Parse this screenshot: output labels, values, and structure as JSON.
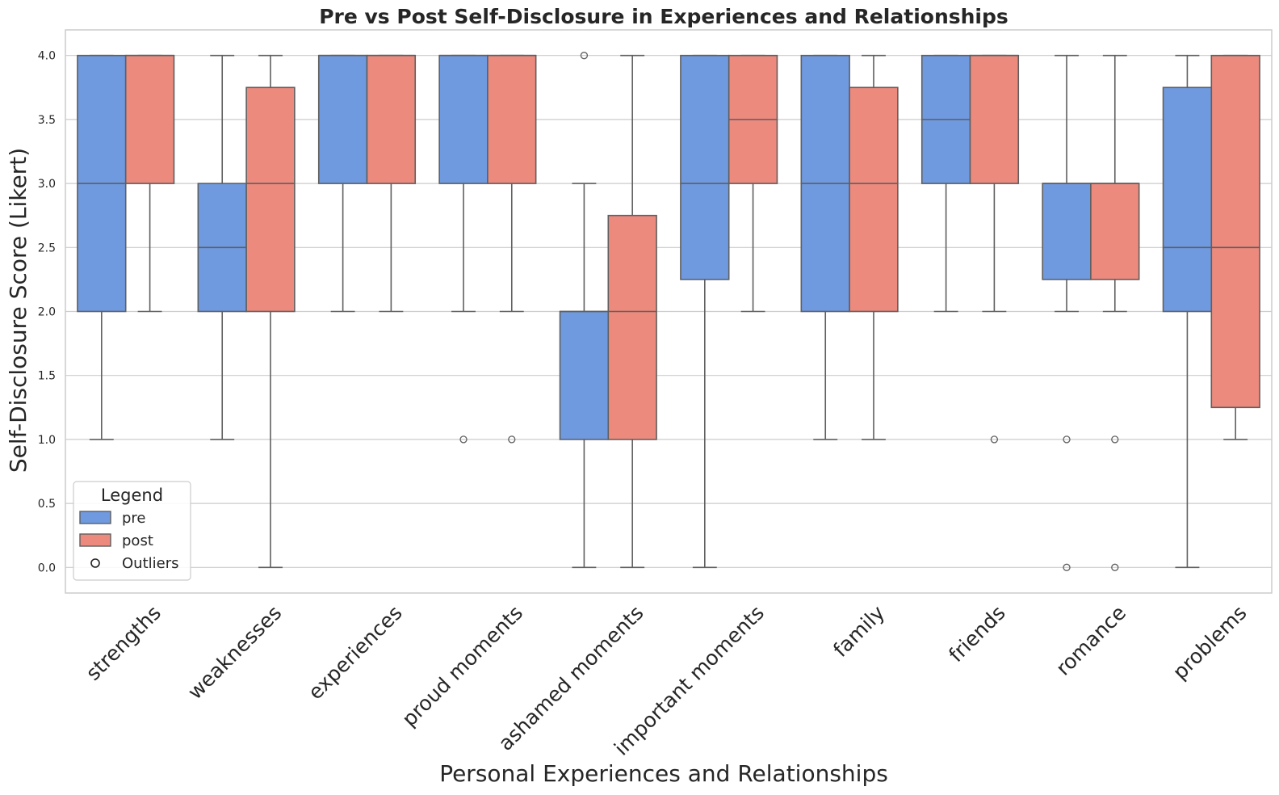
{
  "chart_data": {
    "type": "box",
    "title": "Pre vs Post Self-Disclosure in Experiences and Relationships",
    "xlabel": "Personal Experiences and Relationships",
    "ylabel": "Self-Disclosure Score (Likert)",
    "ylim": [
      -0.2,
      4.2
    ],
    "yticks": [
      0.0,
      0.5,
      1.0,
      1.5,
      2.0,
      2.5,
      3.0,
      3.5,
      4.0
    ],
    "ytick_labels": [
      "0.0",
      "0.5",
      "1.0",
      "1.5",
      "2.0",
      "2.5",
      "3.0",
      "3.5",
      "4.0"
    ],
    "grid": true,
    "legend": {
      "title": "Legend",
      "placement": "lower-left",
      "entries": [
        {
          "label": "pre",
          "kind": "patch",
          "color": "#6f9ae0"
        },
        {
          "label": "post",
          "kind": "patch",
          "color": "#ec8a7e"
        },
        {
          "label": "Outliers",
          "kind": "marker"
        }
      ]
    },
    "colors": {
      "pre": "#6f9ae0",
      "post": "#ec8a7e",
      "line": "#5f5f5f",
      "grid": "#cccccc",
      "frame": "#cccccc"
    },
    "categories": [
      "strengths",
      "weaknesses",
      "experiences",
      "proud moments",
      "ashamed moments",
      "important moments",
      "family",
      "friends",
      "romance",
      "problems"
    ],
    "series": [
      {
        "name": "pre",
        "boxes": [
          {
            "whislo": 1,
            "q1": 2,
            "med": 3,
            "q3": 4,
            "whishi": 4,
            "fliers": []
          },
          {
            "whislo": 1,
            "q1": 2,
            "med": 2.5,
            "q3": 3,
            "whishi": 4,
            "fliers": []
          },
          {
            "whislo": 2,
            "q1": 3,
            "med": 4,
            "q3": 4,
            "whishi": 4,
            "fliers": []
          },
          {
            "whislo": 2,
            "q1": 3,
            "med": 4,
            "q3": 4,
            "whishi": 4,
            "fliers": [
              1
            ]
          },
          {
            "whislo": 0,
            "q1": 1,
            "med": 2,
            "q3": 2,
            "whishi": 3,
            "fliers": [
              4
            ]
          },
          {
            "whislo": 0,
            "q1": 2.25,
            "med": 3,
            "q3": 4,
            "whishi": 4,
            "fliers": []
          },
          {
            "whislo": 1,
            "q1": 2,
            "med": 3,
            "q3": 4,
            "whishi": 4,
            "fliers": []
          },
          {
            "whislo": 2,
            "q1": 3,
            "med": 3.5,
            "q3": 4,
            "whishi": 4,
            "fliers": []
          },
          {
            "whislo": 2,
            "q1": 2.25,
            "med": 3,
            "q3": 3,
            "whishi": 4,
            "fliers": [
              1,
              0
            ]
          },
          {
            "whislo": 0,
            "q1": 2,
            "med": 2.5,
            "q3": 3.75,
            "whishi": 4,
            "fliers": []
          }
        ]
      },
      {
        "name": "post",
        "boxes": [
          {
            "whislo": 2,
            "q1": 3,
            "med": 4,
            "q3": 4,
            "whishi": 4,
            "fliers": []
          },
          {
            "whislo": 0,
            "q1": 2,
            "med": 3,
            "q3": 3.75,
            "whishi": 4,
            "fliers": []
          },
          {
            "whislo": 2,
            "q1": 3,
            "med": 4,
            "q3": 4,
            "whishi": 4,
            "fliers": []
          },
          {
            "whislo": 2,
            "q1": 3,
            "med": 4,
            "q3": 4,
            "whishi": 4,
            "fliers": [
              1
            ]
          },
          {
            "whislo": 0,
            "q1": 1,
            "med": 2,
            "q3": 2.75,
            "whishi": 4,
            "fliers": []
          },
          {
            "whislo": 2,
            "q1": 3,
            "med": 3.5,
            "q3": 4,
            "whishi": 4,
            "fliers": []
          },
          {
            "whislo": 1,
            "q1": 2,
            "med": 3,
            "q3": 3.75,
            "whishi": 4,
            "fliers": []
          },
          {
            "whislo": 2,
            "q1": 3,
            "med": 4,
            "q3": 4,
            "whishi": 4,
            "fliers": [
              1
            ]
          },
          {
            "whislo": 2,
            "q1": 2.25,
            "med": 3,
            "q3": 3,
            "whishi": 4,
            "fliers": [
              1,
              0
            ]
          },
          {
            "whislo": 1,
            "q1": 1.25,
            "med": 2.5,
            "q3": 4,
            "whishi": 4,
            "fliers": []
          }
        ]
      }
    ]
  }
}
